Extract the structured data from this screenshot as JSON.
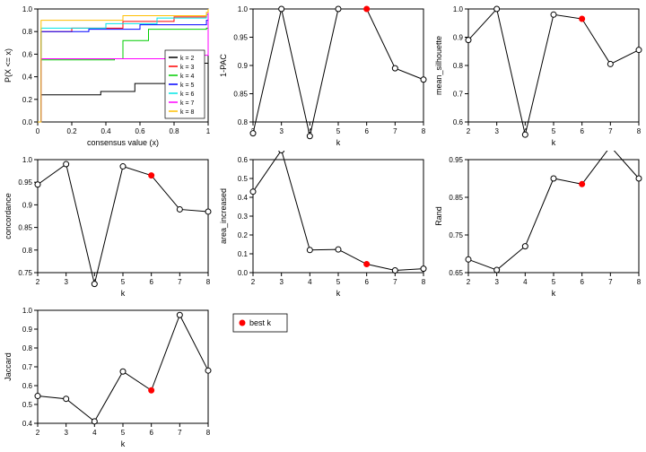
{
  "global": {
    "background_color": "#ffffff",
    "axis_color": "#000000",
    "tick_fontsize": 8,
    "label_fontsize": 9,
    "marker_radius": 3,
    "line_color": "#000000",
    "best_marker_color": "#ff0000"
  },
  "ecdf": {
    "xlabel": "consensus value (x)",
    "ylabel": "P(X <= x)",
    "xlim": [
      0,
      1
    ],
    "ylim": [
      0,
      1
    ],
    "xticks": [
      0.0,
      0.2,
      0.4,
      0.6,
      0.8,
      1.0
    ],
    "yticks": [
      0.0,
      0.2,
      0.4,
      0.6,
      0.8,
      1.0
    ],
    "legend": [
      {
        "label": "k = 2",
        "color": "#000000"
      },
      {
        "label": "k = 3",
        "color": "#ff0000"
      },
      {
        "label": "k = 4",
        "color": "#00cc00"
      },
      {
        "label": "k = 5",
        "color": "#0000ff"
      },
      {
        "label": "k = 6",
        "color": "#00e5e5"
      },
      {
        "label": "k = 7",
        "color": "#ff00ff"
      },
      {
        "label": "k = 8",
        "color": "#ffbf00"
      }
    ],
    "series": {
      "k2": {
        "color": "#000000",
        "pts": [
          [
            0,
            0
          ],
          [
            0.02,
            0.24
          ],
          [
            0.35,
            0.24
          ],
          [
            0.37,
            0.27
          ],
          [
            0.55,
            0.27
          ],
          [
            0.57,
            0.34
          ],
          [
            0.78,
            0.34
          ],
          [
            0.8,
            0.52
          ],
          [
            0.99,
            0.52
          ],
          [
            1.0,
            1.0
          ]
        ]
      },
      "k3": {
        "color": "#ff0000",
        "pts": [
          [
            0,
            0
          ],
          [
            0.02,
            0.8
          ],
          [
            0.2,
            0.83
          ],
          [
            0.5,
            0.89
          ],
          [
            0.8,
            0.93
          ],
          [
            0.99,
            0.95
          ],
          [
            1.0,
            1.0
          ]
        ]
      },
      "k4": {
        "color": "#00cc00",
        "pts": [
          [
            0,
            0
          ],
          [
            0.02,
            0.55
          ],
          [
            0.45,
            0.56
          ],
          [
            0.5,
            0.72
          ],
          [
            0.6,
            0.72
          ],
          [
            0.65,
            0.82
          ],
          [
            0.99,
            0.83
          ],
          [
            1.0,
            1.0
          ]
        ]
      },
      "k5": {
        "color": "#0000ff",
        "pts": [
          [
            0,
            0
          ],
          [
            0.02,
            0.8
          ],
          [
            0.3,
            0.82
          ],
          [
            0.6,
            0.86
          ],
          [
            0.99,
            0.9
          ],
          [
            1.0,
            1.0
          ]
        ]
      },
      "k6": {
        "color": "#00e5e5",
        "pts": [
          [
            0,
            0
          ],
          [
            0.02,
            0.83
          ],
          [
            0.4,
            0.87
          ],
          [
            0.7,
            0.92
          ],
          [
            0.99,
            0.95
          ],
          [
            1.0,
            1.0
          ]
        ]
      },
      "k7": {
        "color": "#ff00ff",
        "pts": [
          [
            0,
            0
          ],
          [
            0.02,
            0.56
          ],
          [
            0.85,
            0.58
          ],
          [
            0.88,
            0.59
          ],
          [
            0.99,
            0.59
          ],
          [
            1.0,
            1.0
          ]
        ]
      },
      "k8": {
        "color": "#ffbf00",
        "pts": [
          [
            0,
            0
          ],
          [
            0.02,
            0.9
          ],
          [
            0.5,
            0.94
          ],
          [
            0.99,
            0.97
          ],
          [
            1.0,
            1.0
          ]
        ]
      }
    }
  },
  "panels": [
    {
      "id": "one_pac",
      "ylabel": "1-PAC",
      "xlabel": "k",
      "x": [
        2,
        3,
        4,
        5,
        6,
        7,
        8
      ],
      "y": [
        0.78,
        1.0,
        0.775,
        1.0,
        1.0,
        0.895,
        0.875
      ],
      "best_k": 6,
      "yticks": [
        0.8,
        0.85,
        0.9,
        0.95,
        1.0
      ]
    },
    {
      "id": "mean_silhouette",
      "ylabel": "mean_silhouette",
      "xlabel": "k",
      "x": [
        2,
        3,
        4,
        5,
        6,
        7,
        8
      ],
      "y": [
        0.89,
        1.0,
        0.555,
        0.98,
        0.965,
        0.805,
        0.855
      ],
      "best_k": 6,
      "yticks": [
        0.6,
        0.7,
        0.8,
        0.9,
        1.0
      ]
    },
    {
      "id": "concordance",
      "ylabel": "concordance",
      "xlabel": "k",
      "x": [
        2,
        3,
        4,
        5,
        6,
        7,
        8
      ],
      "y": [
        0.945,
        0.99,
        0.725,
        0.985,
        0.965,
        0.89,
        0.885
      ],
      "best_k": 6,
      "yticks": [
        0.75,
        0.8,
        0.85,
        0.9,
        0.95,
        1.0
      ]
    },
    {
      "id": "area_increased",
      "ylabel": "area_increased",
      "xlabel": "k",
      "x": [
        2,
        3,
        4,
        5,
        6,
        7,
        8
      ],
      "y": [
        0.43,
        0.65,
        0.12,
        0.123,
        0.045,
        0.012,
        0.021
      ],
      "best_k": 6,
      "yticks": [
        0.0,
        0.1,
        0.2,
        0.3,
        0.4,
        0.5,
        0.6
      ]
    },
    {
      "id": "rand",
      "ylabel": "Rand",
      "xlabel": "k",
      "x": [
        2,
        3,
        4,
        5,
        6,
        7,
        8
      ],
      "y": [
        0.685,
        0.657,
        0.72,
        0.9,
        0.885,
        0.985,
        0.9
      ],
      "best_k": 6,
      "yticks": [
        0.65,
        0.75,
        0.85,
        0.95
      ]
    },
    {
      "id": "jaccard",
      "ylabel": "Jaccard",
      "xlabel": "k",
      "x": [
        2,
        3,
        4,
        5,
        6,
        7,
        8
      ],
      "y": [
        0.545,
        0.53,
        0.41,
        0.675,
        0.575,
        0.975,
        0.68
      ],
      "best_k": 6,
      "yticks": [
        0.4,
        0.5,
        0.6,
        0.7,
        0.8,
        0.9,
        1.0
      ]
    }
  ],
  "legend_box": {
    "label": "best k"
  }
}
